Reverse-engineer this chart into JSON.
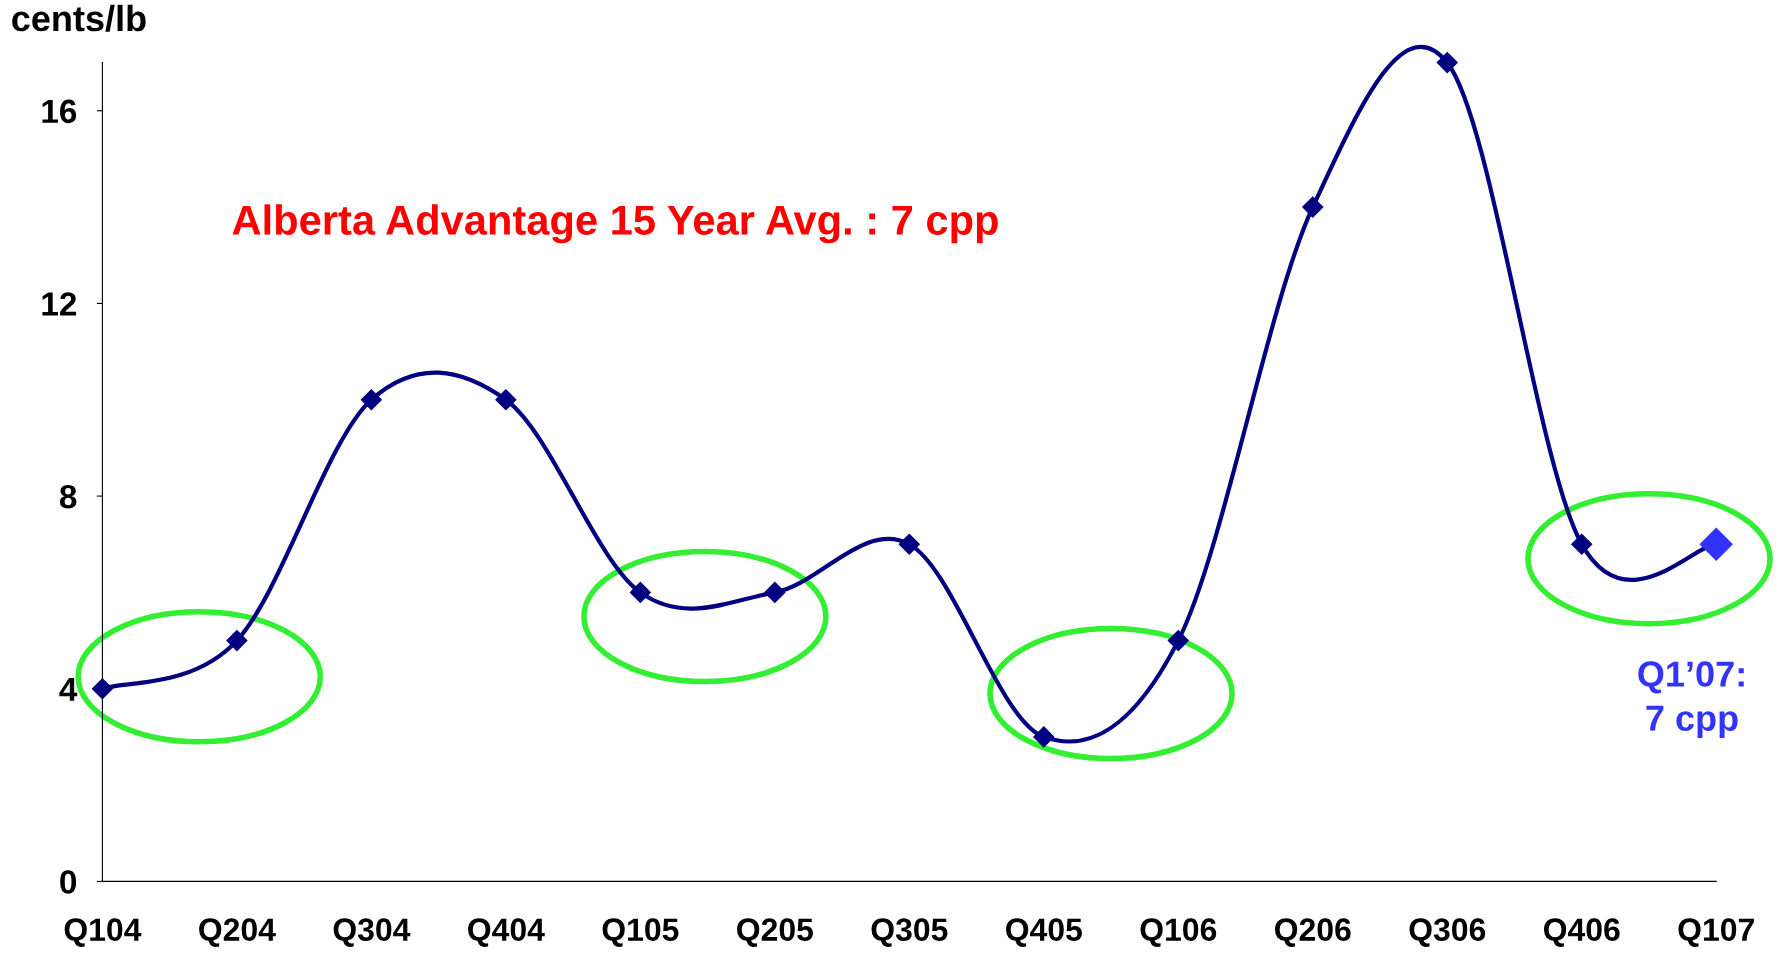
{
  "chart_data": {
    "type": "line",
    "ylabel": "cents/lb",
    "categories": [
      "Q104",
      "Q204",
      "Q304",
      "Q404",
      "Q105",
      "Q205",
      "Q305",
      "Q405",
      "Q106",
      "Q206",
      "Q306",
      "Q406",
      "Q107"
    ],
    "series": [
      {
        "color": "#000080",
        "values": [
          4,
          5,
          10,
          10,
          6,
          6,
          7,
          3,
          5,
          14,
          17,
          7,
          7
        ],
        "colors": [
          "#000080",
          "#000080",
          "#000080",
          "#000080",
          "#000080",
          "#000080",
          "#000080",
          "#000080",
          "#000080",
          "#000080",
          "#000080",
          "#000080",
          "#3333ff"
        ]
      }
    ],
    "ylim": [
      0,
      17
    ],
    "yticks": [
      0,
      4,
      8,
      12,
      16
    ],
    "grid": false,
    "legend": false,
    "marker": "diamond",
    "line_style": "solid",
    "annotations": [
      "Alberta Advantage 15 Year Avg. : 7 cpp",
      "Q1’07:\n7 cpp"
    ]
  }
}
